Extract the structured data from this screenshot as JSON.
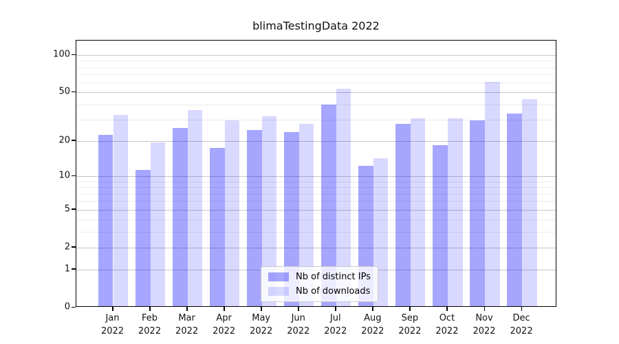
{
  "chart_data": {
    "type": "bar",
    "title": "blimaTestingData 2022",
    "year_label": "2022",
    "categories": [
      "Jan",
      "Feb",
      "Mar",
      "Apr",
      "May",
      "Jun",
      "Jul",
      "Aug",
      "Sep",
      "Oct",
      "Nov",
      "Dec"
    ],
    "series": [
      {
        "name": "Nb of distinct IPs",
        "color": "rgba(0,0,255,0.35)",
        "values": [
          22,
          11,
          25,
          17,
          24,
          23,
          39,
          12,
          27,
          18,
          29,
          33
        ]
      },
      {
        "name": "Nb of downloads",
        "color": "rgba(0,0,255,0.15)",
        "values": [
          32,
          19,
          35,
          29,
          31,
          27,
          52,
          14,
          30,
          30,
          59,
          43
        ]
      }
    ],
    "yscale": "log1p",
    "yticks": [
      0,
      1,
      2,
      5,
      10,
      20,
      50,
      100
    ],
    "minor_yticks": [
      3,
      4,
      6,
      7,
      8,
      9,
      30,
      40,
      60,
      70,
      80,
      90
    ],
    "ylim": [
      0,
      130
    ],
    "grid": true,
    "legend_position": "lower center",
    "frame_color": "#000000",
    "major_grid_color": "#c6c6c6",
    "minor_grid_color": "#ececec"
  }
}
